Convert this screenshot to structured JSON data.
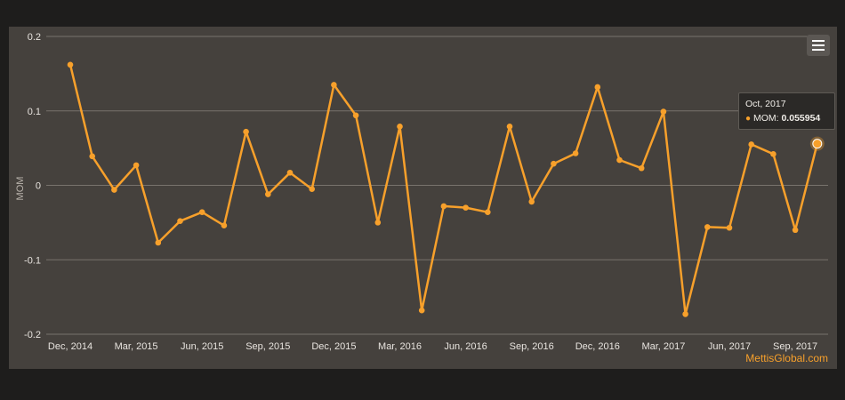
{
  "chart_data": {
    "type": "line",
    "ylabel": "MOM",
    "ylim": [
      -0.2,
      0.2
    ],
    "yticks": [
      "0.2",
      "0.1",
      "0",
      "-0.1",
      "-0.2"
    ],
    "grid": true,
    "series_color": "#f7a02b",
    "x_tick_labels": [
      "Dec, 2014",
      "Mar, 2015",
      "Jun, 2015",
      "Sep, 2015",
      "Dec, 2015",
      "Mar, 2016",
      "Jun, 2016",
      "Sep, 2016",
      "Dec, 2016",
      "Mar, 2017",
      "Jun, 2017",
      "Sep, 2017"
    ],
    "series": [
      {
        "values": [
          0.162,
          0.039,
          -0.006,
          0.027,
          -0.077,
          -0.048,
          -0.036,
          -0.054,
          0.072,
          -0.012,
          0.017,
          -0.005,
          0.135,
          0.094,
          -0.05,
          0.079,
          -0.168,
          -0.028,
          -0.03,
          -0.036,
          0.079,
          -0.022,
          0.029,
          0.043,
          0.132,
          0.034,
          0.023,
          0.099,
          -0.173,
          -0.056,
          -0.057,
          0.055,
          0.042,
          -0.06,
          0.055954
        ]
      }
    ]
  },
  "tooltip": {
    "title": "Oct, 2017",
    "series_label": "MOM:",
    "value": "0.055954"
  },
  "menu_icon": "hamburger-menu-icon",
  "credits": "MettisGlobal.com"
}
